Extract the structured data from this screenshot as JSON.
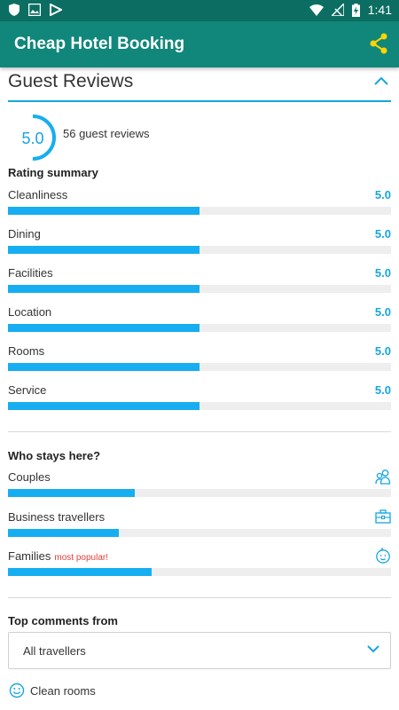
{
  "status_bar": {
    "time": "1:41",
    "icons": [
      "shield-icon",
      "image-icon",
      "store-icon",
      "wifi-icon",
      "signal-off-icon",
      "battery-charging-icon"
    ]
  },
  "app": {
    "title": "Cheap Hotel Booking",
    "share_icon": "share-icon"
  },
  "colors": {
    "status_bar": "#0c6e62",
    "app_bar": "#10877a",
    "accent": "#16aef0",
    "share": "#ffd400",
    "popular": "#e0403a"
  },
  "section": {
    "title": "Guest Reviews"
  },
  "overall": {
    "score": "5.0",
    "count_text": "56 guest reviews",
    "ring_fraction": 0.5
  },
  "rating_summary": {
    "heading": "Rating summary",
    "items": [
      {
        "label": "Cleanliness",
        "value": "5.0",
        "fraction": 0.5
      },
      {
        "label": "Dining",
        "value": "5.0",
        "fraction": 0.5
      },
      {
        "label": "Facilities",
        "value": "5.0",
        "fraction": 0.5
      },
      {
        "label": "Location",
        "value": "5.0",
        "fraction": 0.5
      },
      {
        "label": "Rooms",
        "value": "5.0",
        "fraction": 0.5
      },
      {
        "label": "Service",
        "value": "5.0",
        "fraction": 0.5
      }
    ]
  },
  "who_stays": {
    "heading": "Who stays here?",
    "items": [
      {
        "label": "Couples",
        "tag": "",
        "fraction": 0.33,
        "icon": "couple-icon"
      },
      {
        "label": "Business travellers",
        "tag": "",
        "fraction": 0.29,
        "icon": "briefcase-icon"
      },
      {
        "label": "Families",
        "tag": "most popular!",
        "fraction": 0.375,
        "icon": "baby-face-icon"
      }
    ]
  },
  "top_comments": {
    "heading": "Top comments from",
    "selected": "All travellers",
    "first_comment": "Clean rooms"
  }
}
